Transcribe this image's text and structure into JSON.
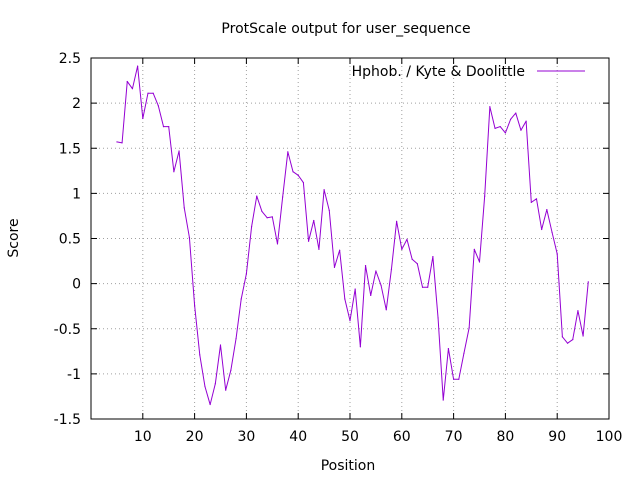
{
  "chart_data": {
    "type": "line",
    "title": "ProtScale output for user_sequence",
    "xlabel": "Position",
    "ylabel": "Score",
    "xlim": [
      0,
      100
    ],
    "ylim": [
      -1.5,
      2.5
    ],
    "x_ticks": [
      "10",
      "20",
      "30",
      "40",
      "50",
      "60",
      "70",
      "80",
      "90",
      "100"
    ],
    "y_ticks": [
      "2.5",
      "2",
      "1.5",
      "1",
      "0.5",
      "0",
      "-0.5",
      "-1",
      "-1.5"
    ],
    "grid": true,
    "legend_position": "top-right",
    "series": [
      {
        "name": "Hphob. / Kyte & Doolittle",
        "color": "#9400d3",
        "x": [
          5,
          6,
          7,
          8,
          9,
          10,
          11,
          12,
          13,
          14,
          15,
          16,
          17,
          18,
          19,
          20,
          21,
          22,
          23,
          24,
          25,
          26,
          27,
          28,
          29,
          30,
          31,
          32,
          33,
          34,
          35,
          36,
          37,
          38,
          39,
          40,
          41,
          42,
          43,
          44,
          45,
          46,
          47,
          48,
          49,
          50,
          51,
          52,
          53,
          54,
          55,
          56,
          57,
          58,
          59,
          60,
          61,
          62,
          63,
          64,
          65,
          66,
          67,
          68,
          69,
          70,
          71,
          72,
          73,
          74,
          75,
          76,
          77,
          78,
          79,
          80,
          81,
          82,
          83,
          84,
          85,
          86,
          87,
          88,
          89,
          90,
          91,
          92,
          93,
          94,
          95,
          96
        ],
        "y": [
          1.57,
          1.56,
          2.24,
          2.16,
          2.41,
          1.83,
          2.11,
          2.11,
          1.97,
          1.74,
          1.74,
          1.24,
          1.47,
          0.84,
          0.51,
          -0.24,
          -0.79,
          -1.14,
          -1.34,
          -1.11,
          -0.68,
          -1.18,
          -0.96,
          -0.61,
          -0.17,
          0.11,
          0.63,
          0.97,
          0.8,
          0.73,
          0.74,
          0.44,
          0.96,
          1.46,
          1.24,
          1.2,
          1.12,
          0.47,
          0.7,
          0.38,
          1.04,
          0.81,
          0.18,
          0.37,
          -0.17,
          -0.41,
          -0.06,
          -0.7,
          0.2,
          -0.13,
          0.14,
          -0.02,
          -0.29,
          0.16,
          0.69,
          0.38,
          0.49,
          0.27,
          0.22,
          -0.04,
          -0.04,
          0.3,
          -0.38,
          -1.29,
          -0.72,
          -1.06,
          -1.06,
          -0.77,
          -0.49,
          0.38,
          0.24,
          0.97,
          1.96,
          1.72,
          1.74,
          1.67,
          1.82,
          1.89,
          1.7,
          1.8,
          0.9,
          0.94,
          0.6,
          0.82,
          0.57,
          0.33,
          -0.59,
          -0.66,
          -0.62,
          -0.3,
          -0.58,
          0.02
        ]
      }
    ]
  }
}
